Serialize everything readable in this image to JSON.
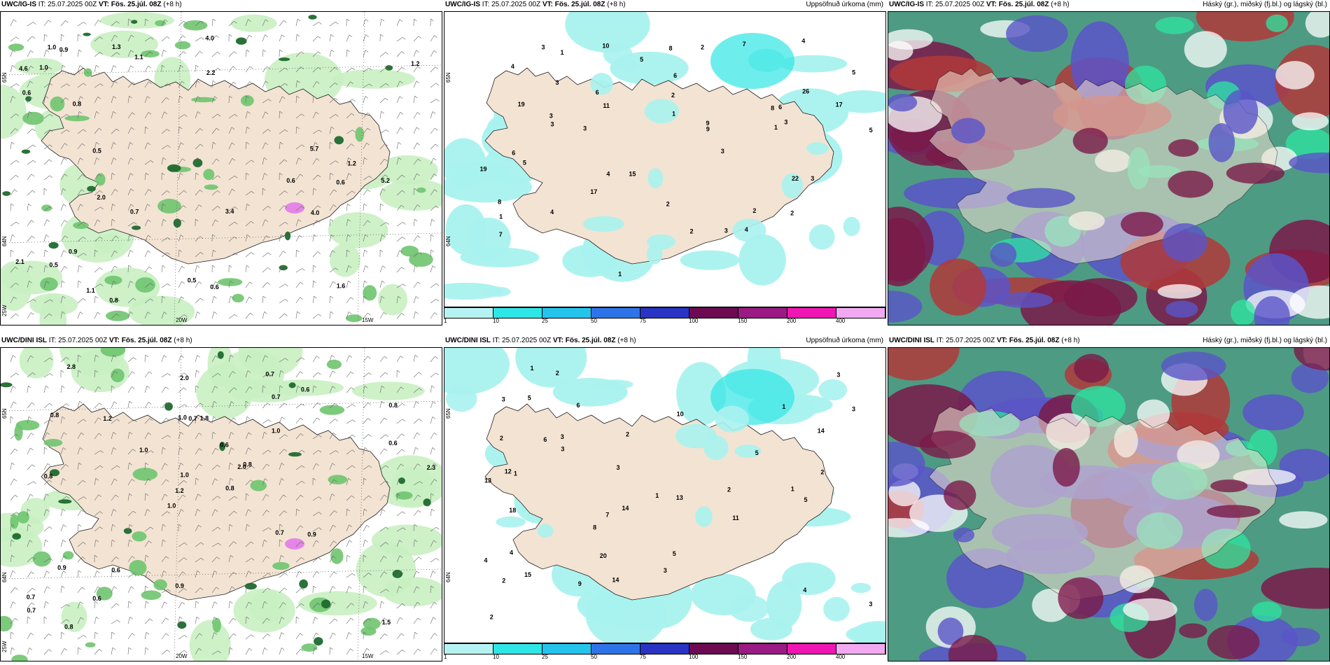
{
  "colors": {
    "land": "#f3e3d3",
    "precip_light": "#a8f2ee",
    "precip_med": "#31e6e6",
    "green_light": "#c9efc2",
    "green_med": "#6fc46f",
    "green_dark": "#1d6a2e",
    "pink": "#e27be9",
    "cloud_high": "#7a1a49",
    "cloud_mid": "#5a55c8",
    "cloud_low": "#2f8a6f",
    "cloud_teal": "#2ee6a0",
    "cloud_red": "#b03a3a"
  },
  "panels": [
    {
      "model": "UWC/IG-IS",
      "it_label": "IT:",
      "it_value": "25.07.2025 00Z",
      "vt_label": "VT:",
      "vt_value": "Fös. 25.júl. 08Z",
      "lead": "(+8 h)",
      "right": "",
      "axis": {
        "lat1": "65N",
        "lat2": "64N",
        "lat3": "25W",
        "lon1": "20W",
        "lon2": "15W"
      },
      "values": [
        "0.5",
        "0.5",
        "1.2",
        "0.6",
        "0.6",
        "0.6",
        "0.9",
        "0.8",
        "1.1",
        "0.6",
        "1.3",
        "0.9",
        "0.8",
        "4.6",
        "1.2",
        "2.2",
        "5.2",
        "4.0",
        "1.6",
        "2.0",
        "1.1",
        "0.5",
        "0.7",
        "3.4",
        "5.7",
        "4.0",
        "1.0",
        "2.1",
        "1.0"
      ]
    },
    {
      "model": "UWC/IG-IS",
      "it_label": "IT:",
      "it_value": "25.07.2025 00Z",
      "vt_label": "VT:",
      "vt_value": "Fös. 25.júl. 08Z",
      "lead": "(+8 h)",
      "right": "Uppsöfnuð úrkoma (mm)",
      "axis": {
        "lat1": "65N",
        "lat2": "64N"
      },
      "values": [
        "3",
        "5",
        "7",
        "6",
        "11",
        "15",
        "26",
        "22",
        "19",
        "17",
        "19",
        "10",
        "8",
        "4",
        "3",
        "2",
        "3",
        "1",
        "1",
        "1",
        "2",
        "2",
        "5",
        "6",
        "8",
        "7",
        "4",
        "3",
        "3",
        "9",
        "5",
        "6",
        "4",
        "3",
        "2",
        "1",
        "3",
        "8",
        "9",
        "17",
        "4",
        "2",
        "3",
        "3",
        "6",
        "5",
        "4",
        "1",
        "2"
      ]
    },
    {
      "model": "UWC/IG-IS",
      "it_label": "IT:",
      "it_value": "25.07.2025 00Z",
      "vt_label": "VT:",
      "vt_value": "Fös. 25.júl. 08Z",
      "lead": "(+8 h)",
      "right": "Háský (gr.), miðský (fj.bl.) og lágský (bl.)",
      "axis": {},
      "values": []
    },
    {
      "model": "UWC/DINI ISL",
      "it_label": "IT:",
      "it_value": "25.07.2025 00Z",
      "vt_label": "VT:",
      "vt_value": "Fös. 25.júl. 08Z",
      "lead": "(+8 h)",
      "right": "",
      "axis": {
        "lat1": "65N",
        "lat2": "64N",
        "lat3": "25W",
        "lon1": "20W",
        "lon2": "15W"
      },
      "values": [
        "0.7",
        "2.0",
        "0.6",
        "0.7",
        "1.8",
        "0.7",
        "0.8",
        "2.8",
        "1.5",
        "0.8",
        "0.8",
        "1.0",
        "1.0",
        "0.8",
        "1.0",
        "0.6",
        "0.9",
        "1.0",
        "0.7",
        "0.6",
        "0.7",
        "0.8",
        "0.9",
        "0.8",
        "2.0",
        "2.3",
        "0.7",
        "0.6",
        "1.2",
        "0.9",
        "1.0",
        "1.2",
        "0.6"
      ]
    },
    {
      "model": "UWC/DINI ISL",
      "it_label": "IT:",
      "it_value": "25.07.2025 00Z",
      "vt_label": "VT:",
      "vt_value": "Fös. 25.júl. 08Z",
      "lead": "(+8 h)",
      "right": "Uppsöfnuð úrkoma (mm)",
      "axis": {
        "lat1": "65N",
        "lat2": "64N"
      },
      "values": [
        "7",
        "6",
        "8",
        "4",
        "5",
        "3",
        "14",
        "20",
        "15",
        "12",
        "13",
        "14",
        "18",
        "11",
        "9",
        "2",
        "1",
        "1",
        "1",
        "5",
        "3",
        "2",
        "2",
        "3",
        "5",
        "10",
        "3",
        "14",
        "13",
        "6",
        "3",
        "2",
        "4",
        "5",
        "3",
        "3",
        "2",
        "1",
        "2",
        "1",
        "2",
        "3",
        "4"
      ]
    },
    {
      "model": "UWC/DINI ISL",
      "it_label": "IT:",
      "it_value": "25.07.2025 00Z",
      "vt_label": "VT:",
      "vt_value": "Fös. 25.júl. 08Z",
      "lead": "(+8 h)",
      "right": "Háský (gr.), miðský (fj.bl.) og lágský (bl.)",
      "axis": {},
      "values": []
    }
  ],
  "legend": {
    "colors": [
      "#b6f2f2",
      "#2ee6e6",
      "#24c4ec",
      "#2e74e8",
      "#2a34c4",
      "#6e0a52",
      "#9c1a84",
      "#f016b4",
      "#f2a9f2"
    ],
    "ticks": [
      "1",
      "10",
      "25",
      "50",
      "75",
      "100",
      "150",
      "200",
      "400"
    ]
  }
}
